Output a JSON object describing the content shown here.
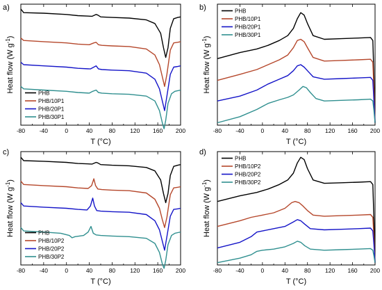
{
  "chart_data": [
    {
      "type": "line",
      "panel_label": "a)",
      "xlabel": "T (°C)",
      "ylabel": "Heat flow (W g-1)",
      "xlim": [
        -80,
        200
      ],
      "ylim": [
        0,
        100
      ],
      "x_ticks": [
        -80,
        -40,
        0,
        40,
        80,
        120,
        160,
        200
      ],
      "y_tick_labels": false,
      "grid": false,
      "legend_position": "bottom-left",
      "series": [
        {
          "name": "PHB",
          "color": "#000000",
          "x": [
            -80,
            -75,
            -40,
            0,
            20,
            45,
            52,
            55,
            60,
            80,
            110,
            140,
            155,
            165,
            170,
            174,
            178,
            182,
            188,
            195,
            200
          ],
          "y": [
            96,
            93,
            92.5,
            91.5,
            90.5,
            90,
            91.5,
            91,
            89.5,
            89,
            88.5,
            87,
            84,
            76,
            64,
            56,
            64,
            80,
            88,
            89,
            89.5
          ]
        },
        {
          "name": "PHB/10P1",
          "color": "#b5472b",
          "x": [
            -80,
            -75,
            -40,
            0,
            20,
            40,
            48,
            52,
            56,
            62,
            80,
            110,
            140,
            155,
            163,
            168,
            172,
            176,
            182,
            188,
            195,
            200
          ],
          "y": [
            72,
            70,
            69,
            68,
            67,
            66.5,
            68,
            68.5,
            66.5,
            66,
            65.5,
            65,
            63,
            58,
            50,
            40,
            32,
            42,
            62,
            68,
            68.5,
            69
          ]
        },
        {
          "name": "PHB/20P1",
          "color": "#1414c8",
          "x": [
            -80,
            -75,
            -40,
            0,
            20,
            42,
            48,
            52,
            56,
            62,
            80,
            110,
            140,
            155,
            163,
            168,
            172,
            176,
            182,
            188,
            195,
            200
          ],
          "y": [
            52,
            50,
            49,
            48,
            47,
            46.5,
            48,
            49,
            46.5,
            46,
            45.5,
            45,
            43,
            38,
            30,
            20,
            12,
            24,
            42,
            48,
            48.5,
            49
          ]
        },
        {
          "name": "PHB/30P1",
          "color": "#2f8f8f",
          "x": [
            -80,
            -75,
            -40,
            0,
            20,
            40,
            46,
            52,
            56,
            62,
            80,
            110,
            140,
            155,
            163,
            168,
            171,
            174,
            178,
            184,
            190,
            195,
            200
          ],
          "y": [
            32,
            30,
            29,
            28,
            27,
            26.5,
            28,
            29,
            27,
            26.5,
            26,
            25.5,
            24,
            20,
            12,
            2,
            -3,
            4,
            18,
            26,
            28,
            28.5,
            29
          ]
        }
      ]
    },
    {
      "type": "line",
      "panel_label": "b)",
      "xlabel": "T (°C)",
      "ylabel": "Heat flow (W g-1)",
      "xlim": [
        -80,
        200
      ],
      "ylim": [
        0,
        100
      ],
      "x_ticks": [
        -80,
        -40,
        0,
        40,
        80,
        120,
        160,
        200
      ],
      "y_tick_labels": false,
      "grid": false,
      "legend_position": "top-left",
      "series": [
        {
          "name": "PHB",
          "color": "#000000",
          "x": [
            -80,
            -40,
            -10,
            10,
            30,
            45,
            55,
            62,
            68,
            74,
            80,
            90,
            110,
            140,
            170,
            192,
            196,
            198,
            200
          ],
          "y": [
            55,
            60,
            63,
            66,
            70,
            74,
            80,
            88,
            93,
            91,
            84,
            74,
            71,
            71.5,
            72,
            72.5,
            70,
            40,
            2
          ]
        },
        {
          "name": "PHB/10P1",
          "color": "#b5472b",
          "x": [
            -80,
            -40,
            -10,
            10,
            30,
            45,
            55,
            62,
            68,
            74,
            80,
            90,
            110,
            140,
            170,
            192,
            196,
            198,
            200
          ],
          "y": [
            37,
            42,
            46,
            50,
            54,
            58,
            64,
            70,
            71,
            69,
            64,
            56,
            53,
            53.5,
            54,
            54.5,
            52,
            30,
            2
          ]
        },
        {
          "name": "PHB/20P1",
          "color": "#1414c8",
          "x": [
            -80,
            -40,
            -10,
            10,
            30,
            45,
            55,
            62,
            68,
            74,
            80,
            90,
            110,
            140,
            170,
            192,
            196,
            198,
            200
          ],
          "y": [
            20,
            24,
            29,
            34,
            38,
            41,
            45,
            49,
            50,
            48,
            45,
            40,
            38,
            38.5,
            39,
            39.5,
            37,
            20,
            2
          ]
        },
        {
          "name": "PHB/30P1",
          "color": "#2f8f8f",
          "x": [
            -80,
            -40,
            -10,
            10,
            30,
            45,
            55,
            65,
            72,
            78,
            85,
            95,
            110,
            140,
            170,
            192,
            196,
            198,
            200
          ],
          "y": [
            2,
            7,
            13,
            18,
            21,
            23,
            25,
            29,
            32,
            31,
            27,
            22,
            20,
            20.5,
            21,
            21.5,
            20,
            12,
            2
          ]
        }
      ]
    },
    {
      "type": "line",
      "panel_label": "c)",
      "xlabel": "T (°C)",
      "ylabel": "Heat flow (W g-1)",
      "xlim": [
        -80,
        200
      ],
      "ylim": [
        0,
        100
      ],
      "x_ticks": [
        -80,
        -40,
        0,
        40,
        80,
        120,
        160,
        200
      ],
      "y_tick_labels": false,
      "grid": false,
      "legend_position": "bottom-left",
      "series": [
        {
          "name": "PHB",
          "color": "#000000",
          "x": [
            -80,
            -75,
            -40,
            0,
            20,
            45,
            52,
            55,
            60,
            80,
            110,
            140,
            155,
            165,
            170,
            174,
            178,
            182,
            188,
            195,
            200
          ],
          "y": [
            95,
            92,
            91.5,
            90.5,
            89.5,
            89,
            90.5,
            90,
            88.5,
            88,
            87.5,
            86,
            83,
            75,
            63,
            55,
            63,
            79,
            87,
            88,
            88.5
          ]
        },
        {
          "name": "PHB/10P2",
          "color": "#b5472b",
          "x": [
            -80,
            -75,
            -40,
            0,
            20,
            38,
            44,
            48,
            51,
            55,
            62,
            80,
            110,
            140,
            155,
            163,
            168,
            172,
            176,
            182,
            188,
            195,
            200
          ],
          "y": [
            74,
            71,
            70,
            69,
            68,
            67.5,
            70,
            76,
            70,
            67,
            66.5,
            66,
            65.5,
            63.5,
            58,
            50,
            40,
            33,
            42,
            62,
            68,
            68.5,
            69
          ]
        },
        {
          "name": "PHB/20P2",
          "color": "#1414c8",
          "x": [
            -80,
            -75,
            -40,
            0,
            20,
            36,
            42,
            46,
            49,
            53,
            60,
            80,
            110,
            140,
            155,
            163,
            168,
            172,
            176,
            182,
            188,
            195,
            200
          ],
          "y": [
            55,
            52,
            51,
            50,
            49,
            48.5,
            52,
            59,
            52,
            48,
            47.5,
            47,
            46.5,
            44.5,
            39,
            31,
            21,
            13,
            25,
            43,
            49,
            49.5,
            50
          ]
        },
        {
          "name": "PHB/30P2",
          "color": "#2f8f8f",
          "x": [
            -80,
            -75,
            -40,
            -10,
            5,
            10,
            15,
            30,
            38,
            43,
            47,
            52,
            60,
            80,
            110,
            140,
            155,
            163,
            168,
            171,
            174,
            178,
            184,
            190,
            195,
            200
          ],
          "y": [
            33,
            30,
            29,
            28,
            26,
            24,
            25,
            26,
            29,
            34,
            28,
            26.5,
            26,
            25.5,
            25,
            23.5,
            19,
            11,
            1,
            -3,
            4,
            18,
            26,
            28,
            28.5,
            29
          ]
        }
      ]
    },
    {
      "type": "line",
      "panel_label": "d)",
      "xlabel": "T (°C)",
      "ylabel": "Heat flow (W g-1)",
      "xlim": [
        -80,
        200
      ],
      "ylim": [
        0,
        100
      ],
      "x_ticks": [
        -80,
        -40,
        0,
        40,
        80,
        120,
        160,
        200
      ],
      "y_tick_labels": false,
      "grid": false,
      "legend_position": "top-left",
      "series": [
        {
          "name": "PHB",
          "color": "#000000",
          "x": [
            -80,
            -40,
            -10,
            10,
            30,
            45,
            55,
            62,
            68,
            74,
            80,
            90,
            110,
            140,
            170,
            192,
            196,
            198,
            200
          ],
          "y": [
            56,
            61,
            64,
            67,
            71,
            75,
            81,
            90,
            95,
            93,
            85,
            75,
            72,
            72.5,
            73,
            73.5,
            71,
            40,
            2
          ]
        },
        {
          "name": "PHB/10P2",
          "color": "#b5472b",
          "x": [
            -80,
            -40,
            -20,
            0,
            20,
            40,
            52,
            58,
            65,
            72,
            80,
            90,
            110,
            140,
            170,
            192,
            196,
            198,
            200
          ],
          "y": [
            34,
            39,
            42,
            44,
            46,
            50,
            55,
            56,
            55,
            52,
            48,
            44,
            43,
            43.5,
            44,
            44.5,
            42,
            25,
            2
          ]
        },
        {
          "name": "PHB/20P2",
          "color": "#1414c8",
          "x": [
            -80,
            -40,
            -20,
            -10,
            0,
            20,
            40,
            55,
            62,
            68,
            75,
            85,
            110,
            140,
            170,
            192,
            196,
            198,
            200
          ],
          "y": [
            15,
            20,
            25,
            29,
            30,
            32,
            34,
            38,
            40,
            39,
            36,
            32,
            31,
            31.5,
            32,
            32.5,
            30,
            18,
            2
          ]
        },
        {
          "name": "PHB/30P2",
          "color": "#2f8f8f",
          "x": [
            -80,
            -40,
            -20,
            -10,
            0,
            20,
            40,
            55,
            62,
            68,
            75,
            85,
            110,
            140,
            170,
            192,
            196,
            198,
            200
          ],
          "y": [
            2,
            6,
            9,
            12,
            13,
            14,
            16,
            19,
            21,
            20,
            17,
            14,
            13,
            13.5,
            14,
            14.5,
            13,
            8,
            2
          ]
        }
      ]
    }
  ]
}
